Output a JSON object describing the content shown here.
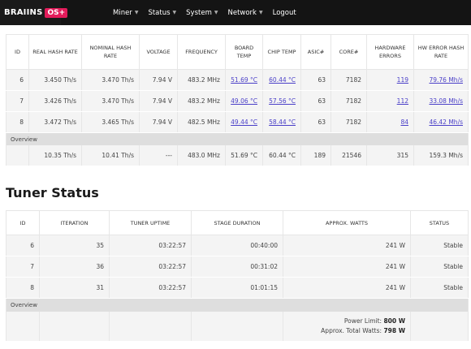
{
  "topbar": {
    "logo_text": "BRAIINS",
    "logo_badge": "OS+",
    "nav": [
      {
        "label": "Miner",
        "has_caret": true
      },
      {
        "label": "Status",
        "has_caret": true
      },
      {
        "label": "System",
        "has_caret": true
      },
      {
        "label": "Network",
        "has_caret": true
      },
      {
        "label": "Logout",
        "has_caret": false
      }
    ]
  },
  "hash_table": {
    "headers": [
      "ID",
      "REAL HASH RATE",
      "NOMINAL HASH RATE",
      "VOLTAGE",
      "FREQUENCY",
      "BOARD TEMP",
      "CHIP TEMP",
      "ASIC#",
      "CORE#",
      "HARDWARE ERRORS",
      "HW ERROR HASH RATE"
    ],
    "rows": [
      {
        "id": "6",
        "real": "3.450 Th/s",
        "nominal": "3.470 Th/s",
        "voltage": "7.94 V",
        "freq": "483.2 MHz",
        "board": "51.69 °C",
        "chip": "60.44 °C",
        "asic": "63",
        "core": "7182",
        "hw_err": "119",
        "hw_rate": "79.76 Mh/s"
      },
      {
        "id": "7",
        "real": "3.426 Th/s",
        "nominal": "3.470 Th/s",
        "voltage": "7.94 V",
        "freq": "483.2 MHz",
        "board": "49.06 °C",
        "chip": "57.56 °C",
        "asic": "63",
        "core": "7182",
        "hw_err": "112",
        "hw_rate": "33.08 Mh/s"
      },
      {
        "id": "8",
        "real": "3.472 Th/s",
        "nominal": "3.465 Th/s",
        "voltage": "7.94 V",
        "freq": "482.5 MHz",
        "board": "49.44 °C",
        "chip": "58.44 °C",
        "asic": "63",
        "core": "7182",
        "hw_err": "84",
        "hw_rate": "46.42 Mh/s"
      }
    ],
    "overview_label": "Overview",
    "overview": {
      "real": "10.35 Th/s",
      "nominal": "10.41 Th/s",
      "voltage": "---",
      "freq": "483.0 MHz",
      "board": "51.69 °C",
      "chip": "60.44 °C",
      "asic": "189",
      "core": "21546",
      "hw_err": "315",
      "hw_rate": "159.3 Mh/s"
    }
  },
  "tuner": {
    "title": "Tuner Status",
    "headers": [
      "ID",
      "ITERATION",
      "TUNER UPTIME",
      "STAGE DURATION",
      "APPROX. WATTS",
      "STATUS"
    ],
    "rows": [
      {
        "id": "6",
        "iteration": "35",
        "uptime": "03:22:57",
        "stage": "00:40:00",
        "watts": "241 W",
        "status": "Stable"
      },
      {
        "id": "7",
        "iteration": "36",
        "uptime": "03:22:57",
        "stage": "00:31:02",
        "watts": "241 W",
        "status": "Stable"
      },
      {
        "id": "8",
        "iteration": "31",
        "uptime": "03:22:57",
        "stage": "01:01:15",
        "watts": "241 W",
        "status": "Stable"
      }
    ],
    "overview_label": "Overview",
    "power_limit_label": "Power Limit:",
    "power_limit_value": "800 W",
    "total_watts_label": "Approx. Total Watts:",
    "total_watts_value": "798 W"
  }
}
